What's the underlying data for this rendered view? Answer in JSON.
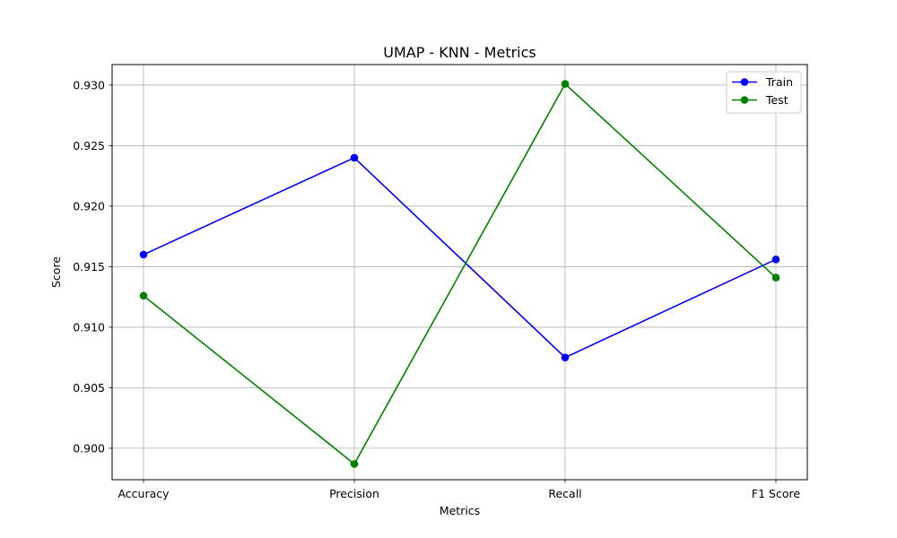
{
  "chart_data": {
    "type": "line",
    "title": "UMAP - KNN - Metrics",
    "xlabel": "Metrics",
    "ylabel": "Score",
    "categories": [
      "Accuracy",
      "Precision",
      "Recall",
      "F1 Score"
    ],
    "ylim": [
      0.8974,
      0.9317
    ],
    "yticks": [
      "0.900",
      "0.905",
      "0.910",
      "0.915",
      "0.920",
      "0.925",
      "0.930"
    ],
    "ytick_values": [
      0.9,
      0.905,
      0.91,
      0.915,
      0.92,
      0.925,
      0.93
    ],
    "grid": true,
    "legend_position": "top-right",
    "series": [
      {
        "name": "Train",
        "color": "#0000ff",
        "marker": "circle",
        "values": [
          0.916,
          0.924,
          0.9075,
          0.9156
        ]
      },
      {
        "name": "Test",
        "color": "#008000",
        "marker": "circle",
        "values": [
          0.9126,
          0.8987,
          0.9301,
          0.9141
        ]
      }
    ]
  }
}
